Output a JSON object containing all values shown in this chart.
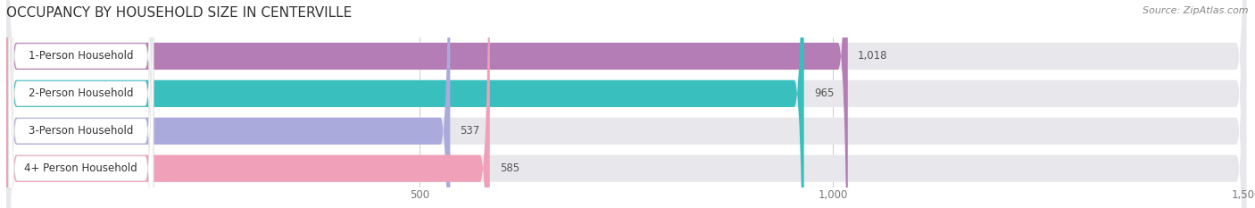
{
  "title": "OCCUPANCY BY HOUSEHOLD SIZE IN CENTERVILLE",
  "source": "Source: ZipAtlas.com",
  "categories": [
    "1-Person Household",
    "2-Person Household",
    "3-Person Household",
    "4+ Person Household"
  ],
  "values": [
    1018,
    965,
    537,
    585
  ],
  "bar_colors": [
    "#b57db5",
    "#3abfbf",
    "#aaaadd",
    "#f0a0b8"
  ],
  "bg_color": "#ffffff",
  "bar_bg_color": "#e8e8ec",
  "xlim": [
    0,
    1500
  ],
  "xticks": [
    500,
    1000,
    1500
  ],
  "title_fontsize": 11,
  "label_fontsize": 8.5,
  "value_fontsize": 8.5,
  "source_fontsize": 8,
  "label_box_color": "#ffffff"
}
